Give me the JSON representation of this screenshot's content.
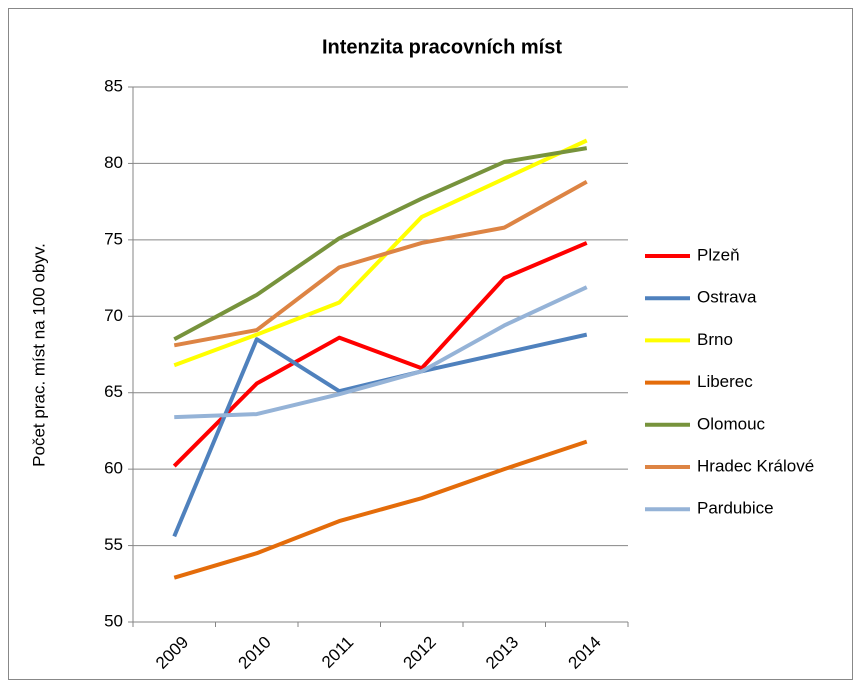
{
  "chart_data": {
    "type": "line",
    "title": "Intenzita pracovních míst",
    "y_label": "Počet prac. míst na 100 obyv.",
    "categories": [
      "2009",
      "2010",
      "2011",
      "2012",
      "2013",
      "2014"
    ],
    "series": [
      {
        "name": "Plzeň",
        "color": "#ff0000",
        "values": [
          60.2,
          65.6,
          68.6,
          66.6,
          72.5,
          74.8
        ]
      },
      {
        "name": "Ostrava",
        "color": "#4f81bd",
        "values": [
          55.6,
          68.5,
          65.1,
          66.4,
          67.6,
          68.8
        ]
      },
      {
        "name": "Brno",
        "color": "#ffff00",
        "values": [
          66.8,
          68.8,
          70.9,
          76.5,
          79.0,
          81.5
        ]
      },
      {
        "name": "Liberec",
        "color": "#e46c0a",
        "values": [
          52.9,
          54.5,
          56.6,
          58.1,
          60.0,
          61.8
        ]
      },
      {
        "name": "Olomouc",
        "color": "#77933c",
        "values": [
          68.5,
          71.4,
          75.1,
          77.7,
          80.1,
          81.0
        ]
      },
      {
        "name": "Hradec Králové",
        "color": "#dd8444",
        "values": [
          68.1,
          69.1,
          73.2,
          74.8,
          75.8,
          78.8
        ]
      },
      {
        "name": "Pardubice",
        "color": "#95b3d7",
        "values": [
          63.4,
          63.6,
          64.9,
          66.4,
          69.4,
          71.9
        ]
      }
    ],
    "ylim": [
      50,
      85
    ],
    "yticks": [
      50,
      55,
      60,
      65,
      70,
      75,
      80,
      85
    ],
    "grid": true,
    "legend": "right"
  }
}
